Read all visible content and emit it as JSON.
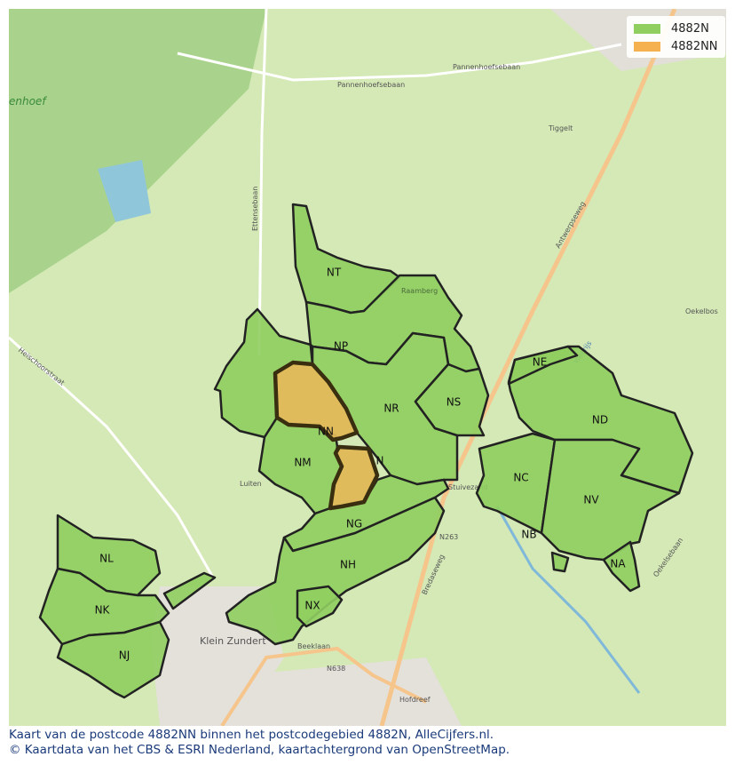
{
  "legend": {
    "items": [
      {
        "label": "4882N",
        "color": "#8fce5f"
      },
      {
        "label": "4882NN",
        "color": "#f5b04f"
      }
    ]
  },
  "regions": [
    {
      "code": "NT",
      "postcode": "4882N"
    },
    {
      "code": "NP",
      "postcode": "4882N"
    },
    {
      "code": "NR",
      "postcode": "4882N"
    },
    {
      "code": "NS",
      "postcode": "4882N"
    },
    {
      "code": "NN",
      "postcode": "4882NN"
    },
    {
      "code": "NM",
      "postcode": "4882N"
    },
    {
      "code": "N",
      "postcode": "4882N"
    },
    {
      "code": "NG",
      "postcode": "4882N"
    },
    {
      "code": "NH",
      "postcode": "4882N"
    },
    {
      "code": "NX",
      "postcode": "4882N"
    },
    {
      "code": "NE",
      "postcode": "4882N"
    },
    {
      "code": "ND",
      "postcode": "4882N"
    },
    {
      "code": "NC",
      "postcode": "4882N"
    },
    {
      "code": "NV",
      "postcode": "4882N"
    },
    {
      "code": "NB",
      "postcode": "4882N"
    },
    {
      "code": "NA",
      "postcode": "4882N"
    },
    {
      "code": "NL",
      "postcode": "4882N"
    },
    {
      "code": "NK",
      "postcode": "4882N"
    },
    {
      "code": "NJ",
      "postcode": "4882N"
    }
  ],
  "map_labels": [
    "Pannenhoefsebaan",
    "Pannenhoefsebaan",
    "Tiggelt",
    "Antwerpseweg",
    "Ettensebaan",
    "Heischoorstraat",
    "Oekelbos",
    "Luiten",
    "Stuivezand",
    "N263",
    "Bredaseweg",
    "Klein Zundert",
    "Beeklaan",
    "N638",
    "Hofdreef",
    "Oekelsebaan",
    "enhoef",
    "Raamberg",
    "Weerijs"
  ],
  "caption": {
    "line1": "Kaart van de postcode 4882NN binnen het postcodegebied 4882N, AlleCijfers.nl.",
    "line2": "© Kaartdata van het CBS & ESRI Nederland, kaartachtergrond van OpenStreetMap."
  },
  "colors": {
    "area": "#8fce5f",
    "highlight": "#e0b857",
    "border": "#222222",
    "background": "#cfe6b0"
  }
}
